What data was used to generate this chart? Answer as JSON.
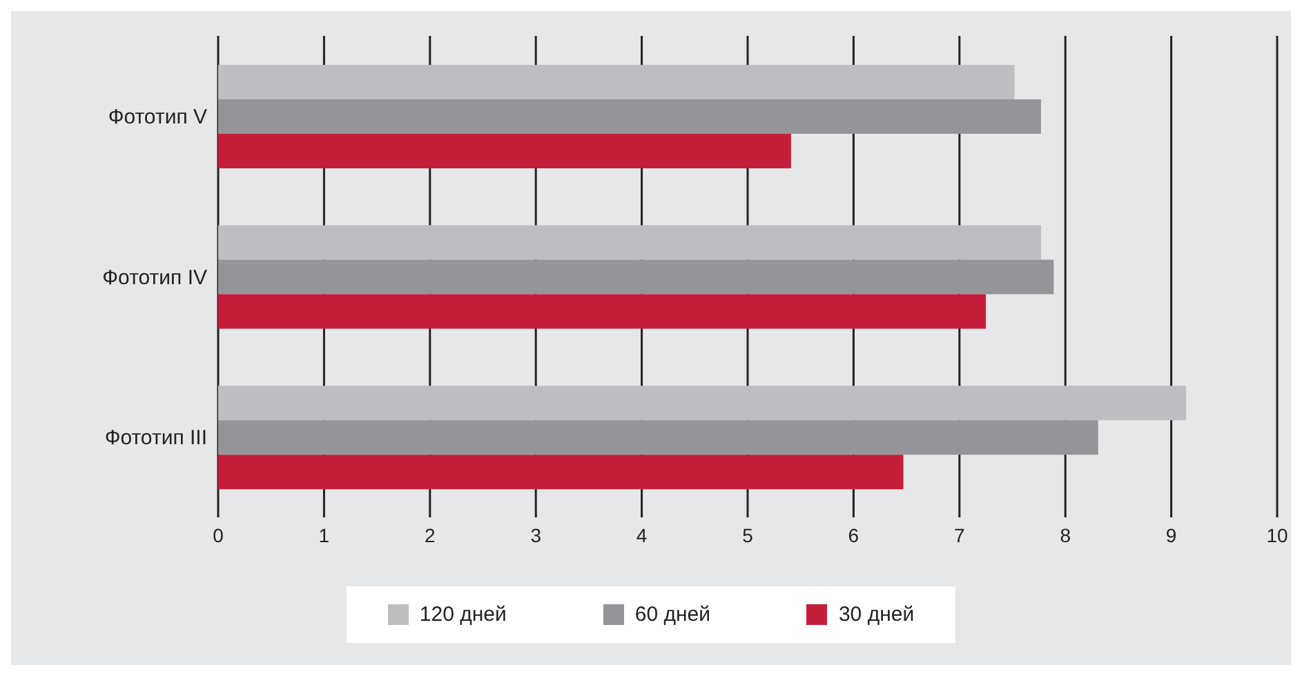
{
  "chart_data": {
    "type": "bar",
    "orientation": "horizontal",
    "categories": [
      "Фототип V",
      "Фототип IV",
      "Фототип III"
    ],
    "series": [
      {
        "name": "120 дней",
        "color": "#bdbec2",
        "values": [
          7.52,
          7.77,
          9.14
        ]
      },
      {
        "name": "60 дней",
        "color": "#949598",
        "values": [
          7.77,
          7.89,
          8.31
        ]
      },
      {
        "name": "30 дней",
        "color": "#c41e3a",
        "values": [
          5.41,
          7.25,
          6.47
        ]
      }
    ],
    "xlim": [
      0,
      10
    ],
    "xticks": [
      0,
      1,
      2,
      3,
      4,
      5,
      6,
      7,
      8,
      9,
      10
    ],
    "grid": "x",
    "legend": "bottom"
  }
}
